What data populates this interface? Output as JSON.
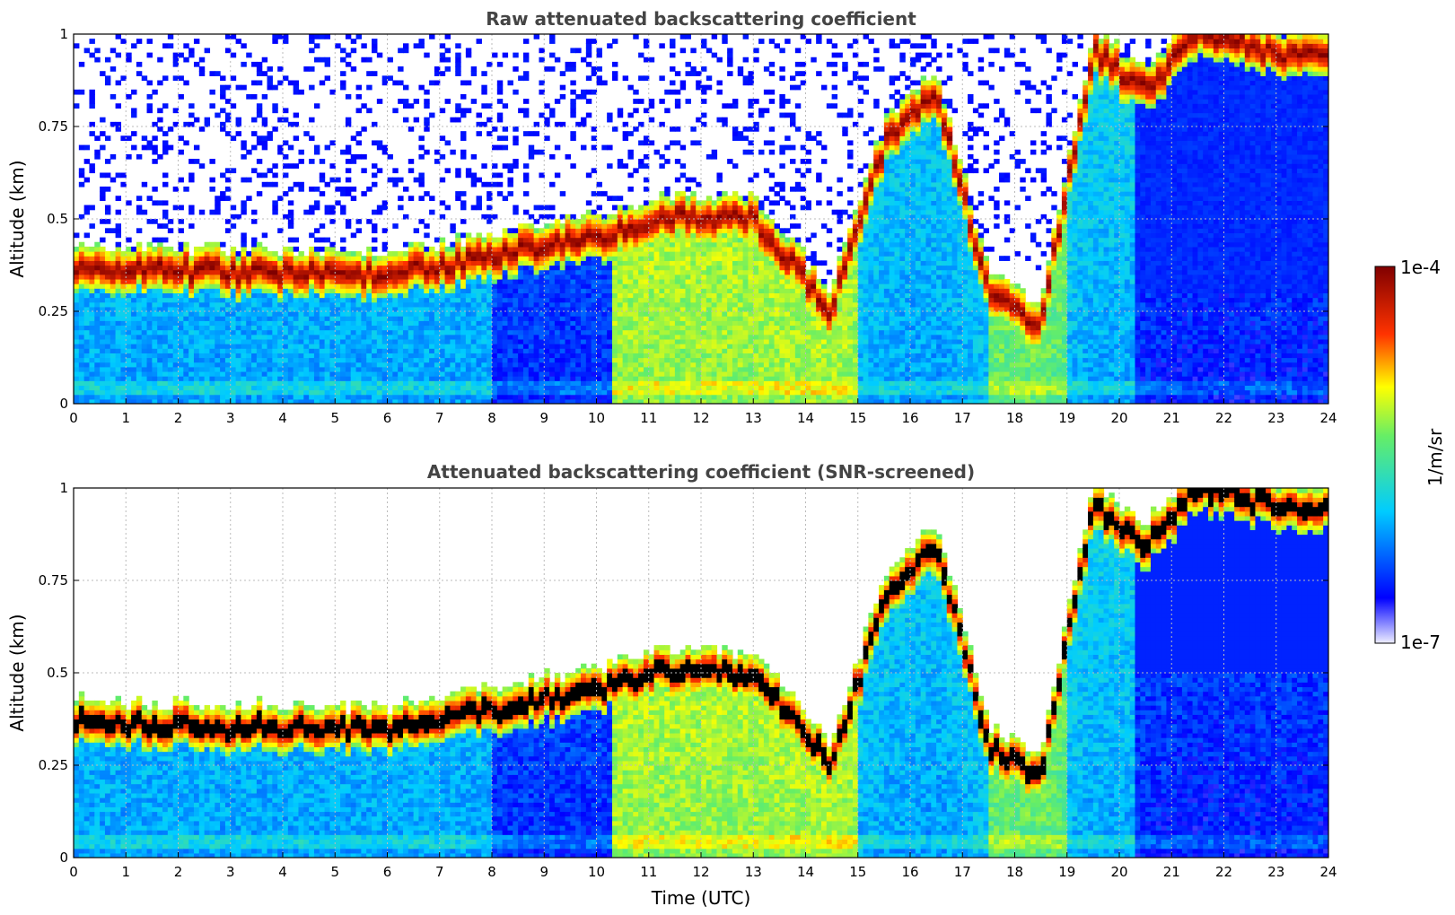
{
  "chart_data": [
    {
      "type": "heatmap",
      "title": "Raw attenuated backscattering coefficient",
      "xlabel": "",
      "ylabel": "Altitude (km)",
      "xlim": [
        0,
        24
      ],
      "ylim": [
        0,
        1
      ],
      "x_ticks": [
        "0",
        "1",
        "2",
        "3",
        "4",
        "5",
        "6",
        "7",
        "8",
        "9",
        "10",
        "11",
        "12",
        "13",
        "14",
        "15",
        "16",
        "17",
        "18",
        "19",
        "20",
        "21",
        "22",
        "23",
        "24"
      ],
      "y_ticks": [
        "0",
        "0.25",
        "0.5",
        "0.75",
        "1"
      ],
      "grid": true,
      "features": {
        "layer_peak_altitude_km": [
          {
            "time": 0,
            "alt": 0.37
          },
          {
            "time": 2,
            "alt": 0.36
          },
          {
            "time": 4,
            "alt": 0.35
          },
          {
            "time": 6,
            "alt": 0.35
          },
          {
            "time": 8,
            "alt": 0.4
          },
          {
            "time": 9,
            "alt": 0.43
          },
          {
            "time": 10,
            "alt": 0.45
          },
          {
            "time": 11,
            "alt": 0.5
          },
          {
            "time": 13,
            "alt": 0.5
          },
          {
            "time": 14.5,
            "alt": 0.25
          },
          {
            "time": 15.5,
            "alt": 0.7
          },
          {
            "time": 16.5,
            "alt": 0.85
          },
          {
            "time": 17.5,
            "alt": 0.3
          },
          {
            "time": 18.5,
            "alt": 0.22
          },
          {
            "time": 19.5,
            "alt": 0.95
          },
          {
            "time": 20.5,
            "alt": 0.85
          },
          {
            "time": 21.5,
            "alt": 1.0
          },
          {
            "time": 23,
            "alt": 0.95
          },
          {
            "time": 24,
            "alt": 0.95
          }
        ]
      }
    },
    {
      "type": "heatmap",
      "title": "Attenuated backscattering coefficient (SNR-screened)",
      "xlabel": "Time (UTC)",
      "ylabel": "Altitude (km)",
      "xlim": [
        0,
        24
      ],
      "ylim": [
        0,
        1
      ],
      "x_ticks": [
        "0",
        "1",
        "2",
        "3",
        "4",
        "5",
        "6",
        "7",
        "8",
        "9",
        "10",
        "11",
        "12",
        "13",
        "14",
        "15",
        "16",
        "17",
        "18",
        "19",
        "20",
        "21",
        "22",
        "23",
        "24"
      ],
      "y_ticks": [
        "0",
        "0.25",
        "0.5",
        "0.75",
        "1"
      ],
      "grid": true
    }
  ],
  "colorbar": {
    "label": "1/m/sr",
    "min_label": "1e-7",
    "max_label": "1e-4",
    "scale": "log",
    "colormap": [
      "#eeeeff",
      "#0000ff",
      "#00ccff",
      "#ffff00",
      "#ff0000",
      "#800000"
    ],
    "screened_color": "#000000"
  }
}
